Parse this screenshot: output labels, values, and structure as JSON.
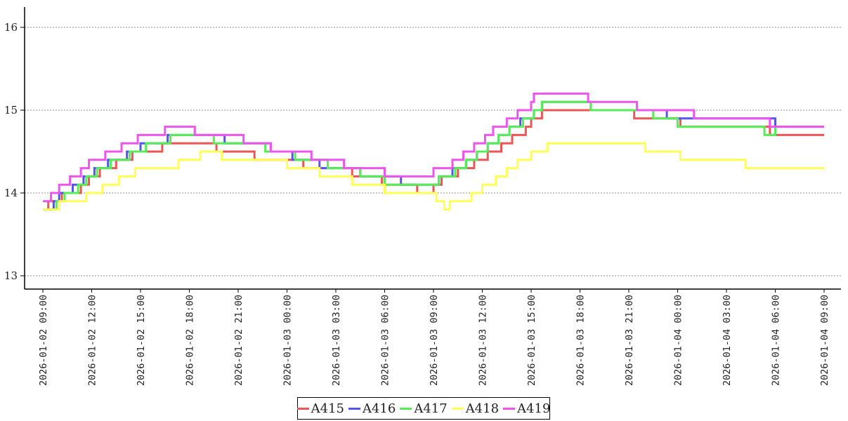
{
  "chart_data": {
    "type": "line",
    "title": "",
    "xlabel": "",
    "ylabel": "",
    "ylim": [
      12.9,
      16.3
    ],
    "yticks": [
      "13",
      "14",
      "15",
      "16"
    ],
    "grid": "horizontal dotted",
    "legend_position": "bottom-center",
    "x_tick_labels": [
      "2026-01-02 09:00",
      "2026-01-02 12:00",
      "2026-01-02 15:00",
      "2026-01-02 18:00",
      "2026-01-02 21:00",
      "2026-01-03 00:00",
      "2026-01-03 03:00",
      "2026-01-03 06:00",
      "2026-01-03 09:00",
      "2026-01-03 12:00",
      "2026-01-03 15:00",
      "2026-01-03 18:00",
      "2026-01-03 21:00",
      "2026-01-04 00:00",
      "2026-01-04 03:00",
      "2026-01-04 06:00",
      "2026-01-04 09:00"
    ],
    "series": [
      {
        "name": "A415",
        "color": "#ee5555",
        "points": [
          [
            "2026-01-02 09:00",
            13.8
          ],
          [
            "2026-01-02 09:20",
            13.9
          ],
          [
            "2026-01-02 10:10",
            14.0
          ],
          [
            "2026-01-02 11:20",
            14.1
          ],
          [
            "2026-01-02 11:50",
            14.2
          ],
          [
            "2026-01-02 12:30",
            14.3
          ],
          [
            "2026-01-02 13:30",
            14.4
          ],
          [
            "2026-01-02 14:30",
            14.5
          ],
          [
            "2026-01-02 16:20",
            14.6
          ],
          [
            "2026-01-02 19:40",
            14.5
          ],
          [
            "2026-01-02 22:00",
            14.4
          ],
          [
            "2026-01-03 01:00",
            14.3
          ],
          [
            "2026-01-03 04:00",
            14.2
          ],
          [
            "2026-01-03 05:50",
            14.1
          ],
          [
            "2026-01-03 08:00",
            14.0
          ],
          [
            "2026-01-03 09:00",
            14.1
          ],
          [
            "2026-01-03 09:30",
            14.2
          ],
          [
            "2026-01-03 10:30",
            14.3
          ],
          [
            "2026-01-03 11:30",
            14.4
          ],
          [
            "2026-01-03 12:20",
            14.5
          ],
          [
            "2026-01-03 13:10",
            14.6
          ],
          [
            "2026-01-03 13:50",
            14.7
          ],
          [
            "2026-01-03 14:40",
            14.8
          ],
          [
            "2026-01-03 15:00",
            14.9
          ],
          [
            "2026-01-03 15:40",
            15.0
          ],
          [
            "2026-01-03 21:20",
            14.9
          ],
          [
            "2026-01-04 00:10",
            14.8
          ],
          [
            "2026-01-04 05:40",
            14.7
          ],
          [
            "2026-01-04 09:00",
            14.7
          ]
        ]
      },
      {
        "name": "A416",
        "color": "#5555ee",
        "points": [
          [
            "2026-01-02 09:00",
            13.8
          ],
          [
            "2026-01-02 09:40",
            13.9
          ],
          [
            "2026-01-02 10:00",
            14.0
          ],
          [
            "2026-01-02 10:50",
            14.1
          ],
          [
            "2026-01-02 11:30",
            14.2
          ],
          [
            "2026-01-02 12:10",
            14.3
          ],
          [
            "2026-01-02 13:00",
            14.4
          ],
          [
            "2026-01-02 14:10",
            14.5
          ],
          [
            "2026-01-02 15:00",
            14.6
          ],
          [
            "2026-01-02 16:40",
            14.7
          ],
          [
            "2026-01-02 20:10",
            14.6
          ],
          [
            "2026-01-02 23:00",
            14.5
          ],
          [
            "2026-01-03 00:20",
            14.4
          ],
          [
            "2026-01-03 02:00",
            14.3
          ],
          [
            "2026-01-03 04:30",
            14.2
          ],
          [
            "2026-01-03 06:20",
            14.2
          ],
          [
            "2026-01-03 07:00",
            14.1
          ],
          [
            "2026-01-03 09:20",
            14.2
          ],
          [
            "2026-01-03 10:10",
            14.3
          ],
          [
            "2026-01-03 11:00",
            14.4
          ],
          [
            "2026-01-03 11:40",
            14.5
          ],
          [
            "2026-01-03 12:20",
            14.6
          ],
          [
            "2026-01-03 13:00",
            14.7
          ],
          [
            "2026-01-03 13:40",
            14.8
          ],
          [
            "2026-01-03 14:20",
            14.9
          ],
          [
            "2026-01-03 15:10",
            15.0
          ],
          [
            "2026-01-03 15:40",
            15.1
          ],
          [
            "2026-01-03 18:40",
            15.0
          ],
          [
            "2026-01-03 22:30",
            15.0
          ],
          [
            "2026-01-03 23:20",
            14.9
          ],
          [
            "2026-01-04 06:00",
            14.8
          ],
          [
            "2026-01-04 09:00",
            14.8
          ]
        ]
      },
      {
        "name": "A417",
        "color": "#55ee55",
        "points": [
          [
            "2026-01-02 09:00",
            13.8
          ],
          [
            "2026-01-02 09:40",
            13.8
          ],
          [
            "2026-01-02 09:50",
            13.9
          ],
          [
            "2026-01-02 10:20",
            14.0
          ],
          [
            "2026-01-02 11:10",
            14.1
          ],
          [
            "2026-01-02 11:40",
            14.2
          ],
          [
            "2026-01-02 12:20",
            14.3
          ],
          [
            "2026-01-02 13:10",
            14.4
          ],
          [
            "2026-01-02 14:20",
            14.5
          ],
          [
            "2026-01-02 15:20",
            14.6
          ],
          [
            "2026-01-02 16:50",
            14.7
          ],
          [
            "2026-01-02 19:30",
            14.6
          ],
          [
            "2026-01-02 22:40",
            14.5
          ],
          [
            "2026-01-03 00:30",
            14.4
          ],
          [
            "2026-01-03 02:30",
            14.3
          ],
          [
            "2026-01-03 04:30",
            14.2
          ],
          [
            "2026-01-03 06:00",
            14.1
          ],
          [
            "2026-01-03 09:20",
            14.2
          ],
          [
            "2026-01-03 10:20",
            14.3
          ],
          [
            "2026-01-03 11:00",
            14.4
          ],
          [
            "2026-01-03 11:40",
            14.5
          ],
          [
            "2026-01-03 12:20",
            14.6
          ],
          [
            "2026-01-03 13:00",
            14.7
          ],
          [
            "2026-01-03 13:40",
            14.8
          ],
          [
            "2026-01-03 14:30",
            14.9
          ],
          [
            "2026-01-03 15:10",
            15.0
          ],
          [
            "2026-01-03 15:40",
            15.1
          ],
          [
            "2026-01-03 18:40",
            15.0
          ],
          [
            "2026-01-03 22:30",
            14.9
          ],
          [
            "2026-01-04 00:00",
            14.8
          ],
          [
            "2026-01-04 05:20",
            14.7
          ],
          [
            "2026-01-04 06:00",
            14.8
          ],
          [
            "2026-01-04 09:00",
            14.8
          ]
        ]
      },
      {
        "name": "A418",
        "color": "#ffff55",
        "points": [
          [
            "2026-01-02 09:00",
            13.8
          ],
          [
            "2026-01-02 10:00",
            13.9
          ],
          [
            "2026-01-02 11:40",
            14.0
          ],
          [
            "2026-01-02 12:40",
            14.1
          ],
          [
            "2026-01-02 13:40",
            14.2
          ],
          [
            "2026-01-02 14:40",
            14.3
          ],
          [
            "2026-01-02 17:20",
            14.4
          ],
          [
            "2026-01-02 18:40",
            14.5
          ],
          [
            "2026-01-02 20:00",
            14.4
          ],
          [
            "2026-01-03 00:00",
            14.3
          ],
          [
            "2026-01-03 02:00",
            14.2
          ],
          [
            "2026-01-03 04:00",
            14.1
          ],
          [
            "2026-01-03 06:00",
            14.0
          ],
          [
            "2026-01-03 09:10",
            13.9
          ],
          [
            "2026-01-03 09:40",
            13.8
          ],
          [
            "2026-01-03 10:00",
            13.9
          ],
          [
            "2026-01-03 11:20",
            14.0
          ],
          [
            "2026-01-03 12:00",
            14.1
          ],
          [
            "2026-01-03 12:50",
            14.2
          ],
          [
            "2026-01-03 13:30",
            14.3
          ],
          [
            "2026-01-03 14:10",
            14.4
          ],
          [
            "2026-01-03 15:00",
            14.5
          ],
          [
            "2026-01-03 16:00",
            14.6
          ],
          [
            "2026-01-03 22:00",
            14.5
          ],
          [
            "2026-01-04 00:10",
            14.4
          ],
          [
            "2026-01-04 04:10",
            14.3
          ],
          [
            "2026-01-04 09:00",
            14.3
          ]
        ]
      },
      {
        "name": "A419",
        "color": "#ee55ee",
        "points": [
          [
            "2026-01-02 09:00",
            13.9
          ],
          [
            "2026-01-02 09:30",
            14.0
          ],
          [
            "2026-01-02 10:00",
            14.1
          ],
          [
            "2026-01-02 10:40",
            14.2
          ],
          [
            "2026-01-02 11:20",
            14.3
          ],
          [
            "2026-01-02 11:50",
            14.4
          ],
          [
            "2026-01-02 12:50",
            14.5
          ],
          [
            "2026-01-02 13:50",
            14.6
          ],
          [
            "2026-01-02 14:50",
            14.7
          ],
          [
            "2026-01-02 16:30",
            14.8
          ],
          [
            "2026-01-02 18:20",
            14.7
          ],
          [
            "2026-01-02 21:20",
            14.6
          ],
          [
            "2026-01-02 23:00",
            14.5
          ],
          [
            "2026-01-03 01:30",
            14.4
          ],
          [
            "2026-01-03 03:30",
            14.3
          ],
          [
            "2026-01-03 06:00",
            14.2
          ],
          [
            "2026-01-03 09:00",
            14.3
          ],
          [
            "2026-01-03 10:10",
            14.4
          ],
          [
            "2026-01-03 10:50",
            14.5
          ],
          [
            "2026-01-03 11:30",
            14.6
          ],
          [
            "2026-01-03 12:10",
            14.7
          ],
          [
            "2026-01-03 12:40",
            14.8
          ],
          [
            "2026-01-03 13:30",
            14.9
          ],
          [
            "2026-01-03 14:10",
            15.0
          ],
          [
            "2026-01-03 15:00",
            15.1
          ],
          [
            "2026-01-03 15:10",
            15.2
          ],
          [
            "2026-01-03 18:30",
            15.1
          ],
          [
            "2026-01-03 21:30",
            15.0
          ],
          [
            "2026-01-04 01:00",
            14.9
          ],
          [
            "2026-01-04 05:40",
            14.8
          ],
          [
            "2026-01-04 09:00",
            14.8
          ]
        ]
      }
    ]
  }
}
